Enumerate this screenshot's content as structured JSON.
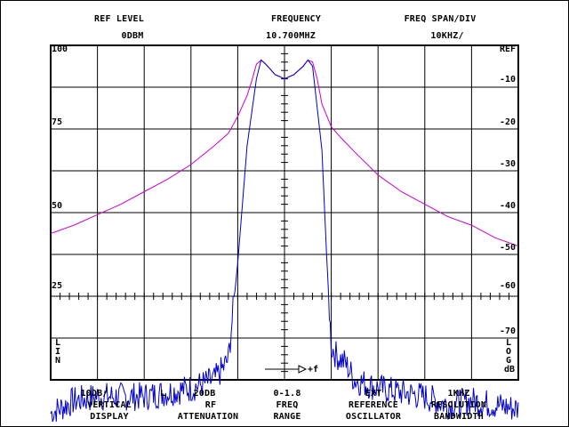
{
  "header": {
    "ref_level_label": "REF LEVEL",
    "ref_level_value": "0DBM",
    "frequency_label": "FREQUENCY",
    "frequency_value": "10.700MHZ",
    "span_label": "FREQ SPAN/DIV",
    "span_value": "10KHZ/"
  },
  "left_scale": [
    "100",
    "75",
    "50",
    "25"
  ],
  "right_scale": [
    "REF",
    "-10",
    "-20",
    "-30",
    "-40",
    "-50",
    "-60",
    "-70"
  ],
  "lin_label": [
    "L",
    "I",
    "N"
  ],
  "log_label": [
    "L",
    "O",
    "G",
    "dB"
  ],
  "freq_arrow_label": "+f",
  "footer": {
    "vertical_value": "10DB/",
    "vertical_l1": "VERTICAL",
    "vertical_l2": "DISPLAY",
    "l_marker": "L",
    "rf_value": "20DB",
    "rf_l1": "RF",
    "rf_l2": "ATTENUATION",
    "freq_value": "0-1.8",
    "freq_l1": "FREQ",
    "freq_l2": "RANGE",
    "ref_value": "EXT",
    "ref_l1": "REFERENCE",
    "ref_l2": "OSCILLATOR",
    "res_value": "1KHZ",
    "res_l1": "RESOLUTION",
    "res_l2": "BANDWIDTH"
  },
  "colors": {
    "grid": "#000000",
    "trace_narrow": "#0000cc",
    "trace_wide": "#cc00cc"
  },
  "chart_data": {
    "type": "line",
    "x_divisions": 10,
    "y_divisions": 8,
    "y_log_range_db": [
      -80,
      0
    ],
    "series": [
      {
        "x": [
          -5.0,
          -4.5,
          -4.0,
          -3.5,
          -3.0,
          -2.5,
          -2.0,
          -1.5,
          -1.2,
          -1.0,
          -0.8,
          -0.7,
          -0.6,
          -0.5,
          -0.4,
          -0.2,
          0.0,
          0.2,
          0.4,
          0.5,
          0.6,
          0.7,
          0.8,
          1.0,
          1.2,
          1.5,
          2.0,
          2.5,
          3.0,
          3.5,
          4.0,
          4.5,
          5.0
        ],
        "y": [
          -45.0,
          -43.0,
          -40.5,
          -38.0,
          -35.0,
          -32.0,
          -28.5,
          -24.0,
          -21.0,
          -17.0,
          -12.0,
          -8.5,
          -4.5,
          -3.5,
          -4.5,
          -7.0,
          -8.0,
          -7.0,
          -5.0,
          -3.5,
          -4.0,
          -8.0,
          -14.0,
          -19.5,
          -22.0,
          -25.5,
          -31.0,
          -35.0,
          -38.0,
          -41.0,
          -43.0,
          -46.0,
          -48.0
        ]
      },
      {
        "x": [
          -5.0,
          -4.5,
          -4.0,
          -3.5,
          -3.0,
          -2.5,
          -2.0,
          -1.5,
          -1.3,
          -1.2,
          -1.0,
          -0.8,
          -0.6,
          -0.5,
          -0.4,
          -0.2,
          0.0,
          0.2,
          0.4,
          0.5,
          0.6,
          0.8,
          0.9,
          1.0,
          1.1,
          1.3,
          1.5,
          2.0,
          2.5,
          3.0,
          3.5,
          4.0,
          4.5,
          5.0
        ],
        "y": [
          -88.0,
          -85.0,
          -84.0,
          -84.0,
          -84.0,
          -83.0,
          -82.0,
          -80.0,
          -77.0,
          -75.0,
          -52.0,
          -24.0,
          -8.0,
          -3.5,
          -4.5,
          -7.0,
          -8.0,
          -7.0,
          -5.0,
          -3.5,
          -5.0,
          -25.0,
          -50.0,
          -72.0,
          -74.0,
          -76.0,
          -80.0,
          -82.0,
          -83.0,
          -84.0,
          -86.0,
          -85.0,
          -86.0,
          -87.0
        ]
      }
    ]
  }
}
